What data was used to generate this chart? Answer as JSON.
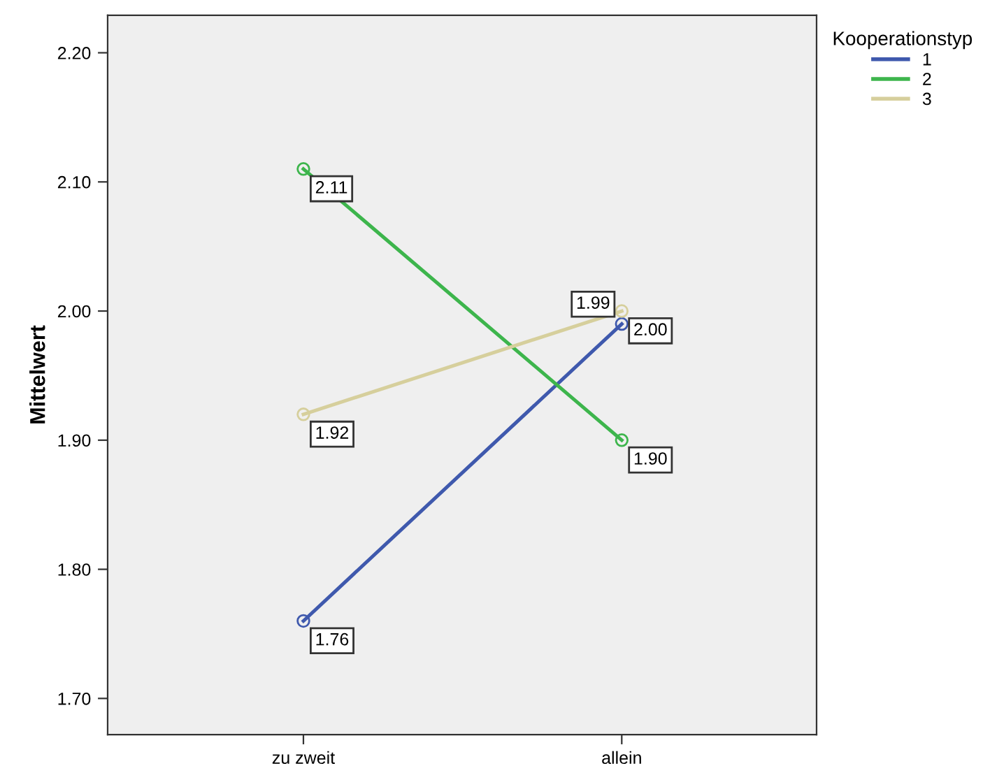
{
  "chart_data": {
    "type": "line",
    "ylabel": "Mittelwert",
    "legend_title": "Kooperationstyp",
    "categories": [
      "zu zweit",
      "allein"
    ],
    "series": [
      {
        "name": "1",
        "color": "#3f59ad",
        "values": [
          1.76,
          1.99
        ],
        "value_labels": [
          "1.76",
          "1.99"
        ]
      },
      {
        "name": "2",
        "color": "#3db54c",
        "values": [
          2.11,
          1.9
        ],
        "value_labels": [
          "2.11",
          "1.90"
        ]
      },
      {
        "name": "3",
        "color": "#d6cf9c",
        "values": [
          1.92,
          2.0
        ],
        "value_labels": [
          "1.92",
          "2.00"
        ]
      }
    ],
    "ylim": [
      1.672,
      2.229
    ],
    "yticks": [
      {
        "value": 1.7,
        "label": "1.70"
      },
      {
        "value": 1.8,
        "label": "1.80"
      },
      {
        "value": 1.9,
        "label": "1.90"
      },
      {
        "value": 2.0,
        "label": "2.00"
      },
      {
        "value": 2.1,
        "label": "2.10"
      },
      {
        "value": 2.2,
        "label": "2.20"
      }
    ],
    "marker": "circle",
    "line_style": "solid",
    "grid": false,
    "legend": "top right"
  }
}
